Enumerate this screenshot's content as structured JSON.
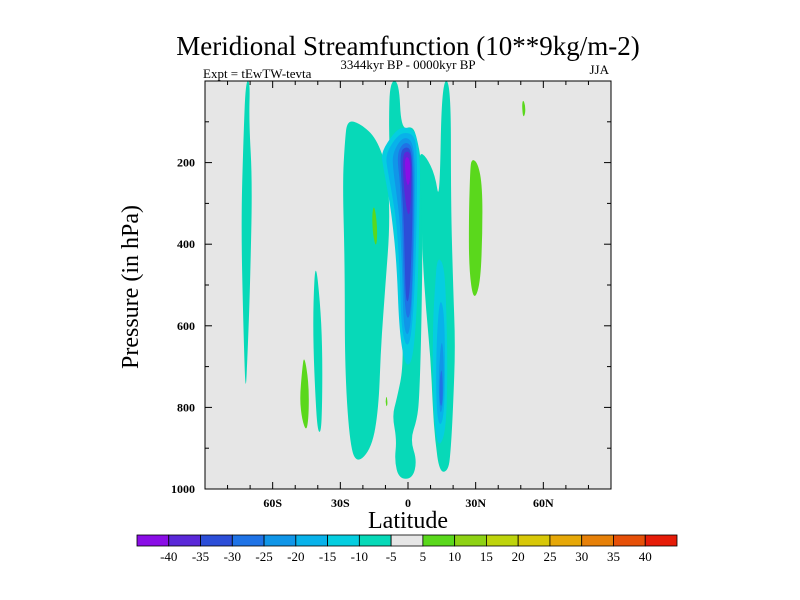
{
  "chart_data": {
    "type": "contour",
    "title": "Meridional Streamfunction (10**9kg/m-2)",
    "left_label": "Expt = tEwTW-tevta",
    "center_label": "3344kyr BP - 0000kyr BP",
    "right_label": "JJA",
    "xlabel": "Latitude",
    "ylabel": "Pressure (in hPa)",
    "xlim": [
      -90,
      90
    ],
    "ylim": [
      1000,
      0
    ],
    "x_ticks": [
      {
        "value": -60,
        "label": "60S"
      },
      {
        "value": -30,
        "label": "30S"
      },
      {
        "value": 0,
        "label": "0"
      },
      {
        "value": 30,
        "label": "30N"
      },
      {
        "value": 60,
        "label": "60N"
      }
    ],
    "y_ticks": [
      {
        "value": 200,
        "label": "200"
      },
      {
        "value": 400,
        "label": "400"
      },
      {
        "value": 600,
        "label": "600"
      },
      {
        "value": 800,
        "label": "800"
      },
      {
        "value": 1000,
        "label": "1000"
      }
    ],
    "levels": [
      -45,
      -40,
      -35,
      -30,
      -25,
      -20,
      -15,
      -10,
      -5,
      5,
      10,
      15,
      20,
      25,
      30,
      35,
      40,
      45
    ],
    "colorbar_labels": [
      "-40",
      "-35",
      "-30",
      "-25",
      "-20",
      "-15",
      "-10",
      "-5",
      "5",
      "10",
      "15",
      "20",
      "25",
      "30",
      "35",
      "40"
    ],
    "colors": [
      "#8a0ee6",
      "#5a28d8",
      "#2c4ed8",
      "#1f73e6",
      "#1096e8",
      "#08b2ea",
      "#05cee0",
      "#07d9b8",
      "#e6e6e6",
      "#5ad81c",
      "#8ed214",
      "#bed40c",
      "#d8c808",
      "#e6a808",
      "#e68008",
      "#e65008",
      "#e61c08"
    ],
    "background_color": "#e6e6e6",
    "regions": [
      {
        "level": "-10 to -5",
        "color_index": 7,
        "points": [
          [
            -72,
            0
          ],
          [
            -70,
            0
          ],
          [
            -70.5,
            100
          ],
          [
            -69,
            250
          ],
          [
            -70,
            500
          ],
          [
            -71,
            650
          ],
          [
            -72,
            780
          ],
          [
            -73,
            600
          ],
          [
            -74,
            350
          ],
          [
            -73,
            150
          ]
        ]
      },
      {
        "level": "-10 to -5",
        "color_index": 7,
        "points": [
          [
            -27,
            95
          ],
          [
            -21,
            105
          ],
          [
            -14,
            140
          ],
          [
            -9,
            220
          ],
          [
            -8,
            350
          ],
          [
            -10,
            500
          ],
          [
            -12,
            650
          ],
          [
            -13,
            800
          ],
          [
            -16,
            900
          ],
          [
            -23,
            940
          ],
          [
            -26,
            880
          ],
          [
            -28,
            700
          ],
          [
            -28,
            450
          ],
          [
            -29,
            250
          ],
          [
            -28,
            150
          ]
        ]
      },
      {
        "level": "-10 to -5",
        "color_index": 7,
        "points": [
          [
            -8,
            0
          ],
          [
            -4,
            0
          ],
          [
            -3,
            120
          ],
          [
            2,
            110
          ],
          [
            4,
            140
          ],
          [
            6,
            200
          ],
          [
            6.5,
            350
          ],
          [
            6,
            600
          ],
          [
            5,
            780
          ],
          [
            4,
            830
          ],
          [
            1,
            880
          ],
          [
            4,
            930
          ],
          [
            2,
            975
          ],
          [
            -4,
            975
          ],
          [
            -6,
            930
          ],
          [
            -5,
            880
          ],
          [
            -7,
            820
          ],
          [
            -5,
            780
          ],
          [
            -2,
            700
          ],
          [
            -3,
            550
          ],
          [
            -5,
            400
          ],
          [
            -7,
            300
          ],
          [
            -8,
            200
          ],
          [
            -8.5,
            100
          ]
        ]
      },
      {
        "level": "-10 to -5",
        "color_index": 7,
        "points": [
          [
            5,
            175
          ],
          [
            8,
            185
          ],
          [
            12,
            230
          ],
          [
            14,
            300
          ],
          [
            15,
            0
          ],
          [
            19,
            0
          ],
          [
            19,
            300
          ],
          [
            20,
            500
          ],
          [
            21,
            650
          ],
          [
            20,
            800
          ],
          [
            19,
            900
          ],
          [
            18,
            955
          ],
          [
            14,
            960
          ],
          [
            12,
            880
          ],
          [
            11,
            800
          ],
          [
            10,
            680
          ],
          [
            8,
            560
          ],
          [
            6.5,
            440
          ],
          [
            6,
            320
          ],
          [
            5.5,
            220
          ]
        ]
      },
      {
        "level": "-10 to -5",
        "color_index": 7,
        "points": [
          [
            -41,
            440
          ],
          [
            -39,
            540
          ],
          [
            -38,
            650
          ],
          [
            -38,
            780
          ],
          [
            -38.5,
            860
          ],
          [
            -40,
            860
          ],
          [
            -41,
            780
          ],
          [
            -42,
            650
          ],
          [
            -42,
            540
          ]
        ]
      },
      {
        "level": "5 to 10",
        "color_index": 9,
        "points": [
          [
            -46,
            670
          ],
          [
            -44,
            740
          ],
          [
            -44,
            820
          ],
          [
            -45,
            860
          ],
          [
            -47,
            830
          ],
          [
            -48,
            780
          ],
          [
            -47,
            710
          ]
        ]
      },
      {
        "level": "5 to 10",
        "color_index": 9,
        "points": [
          [
            -15,
            300
          ],
          [
            -13.5,
            360
          ],
          [
            -14,
            410
          ],
          [
            -15.5,
            380
          ],
          [
            -16,
            330
          ]
        ]
      },
      {
        "level": "5 to 10",
        "color_index": 9,
        "points": [
          [
            -9.5,
            770
          ],
          [
            -9,
            790
          ],
          [
            -9.5,
            800
          ],
          [
            -10,
            785
          ]
        ]
      },
      {
        "level": "5 to 10",
        "color_index": 9,
        "points": [
          [
            28,
            190
          ],
          [
            31,
            200
          ],
          [
            33,
            260
          ],
          [
            33,
            380
          ],
          [
            32,
            500
          ],
          [
            29,
            540
          ],
          [
            27,
            460
          ],
          [
            27,
            320
          ],
          [
            27.5,
            230
          ]
        ]
      },
      {
        "level": "5 to 10",
        "color_index": 9,
        "points": [
          [
            51,
            45
          ],
          [
            52,
            60
          ],
          [
            52,
            80
          ],
          [
            51,
            90
          ],
          [
            50.5,
            60
          ]
        ]
      },
      {
        "level": "-15 to -10",
        "color_index": 6,
        "points": [
          [
            -12,
            175
          ],
          [
            -6,
            125
          ],
          [
            -2,
            112
          ],
          [
            3,
            120
          ],
          [
            4.5,
            160
          ],
          [
            5.5,
            220
          ],
          [
            5,
            320
          ],
          [
            4.5,
            480
          ],
          [
            3.5,
            600
          ],
          [
            2,
            680
          ],
          [
            0,
            700
          ],
          [
            -2,
            680
          ],
          [
            -4,
            600
          ],
          [
            -5,
            450
          ],
          [
            -7,
            340
          ],
          [
            -9,
            270
          ],
          [
            -11,
            210
          ]
        ]
      },
      {
        "level": "-15 to -10",
        "color_index": 6,
        "points": [
          [
            13,
            430
          ],
          [
            16,
            450
          ],
          [
            17,
            550
          ],
          [
            17.5,
            700
          ],
          [
            17,
            850
          ],
          [
            14,
            900
          ],
          [
            12,
            860
          ],
          [
            11,
            760
          ],
          [
            11,
            600
          ],
          [
            12,
            500
          ]
        ]
      },
      {
        "level": "-20 to -15",
        "color_index": 5,
        "points": [
          [
            -10,
            180
          ],
          [
            -5,
            135
          ],
          [
            -1,
            125
          ],
          [
            3,
            135
          ],
          [
            4,
            180
          ],
          [
            4,
            280
          ],
          [
            3.5,
            420
          ],
          [
            2.5,
            560
          ],
          [
            1,
            640
          ],
          [
            -1,
            650
          ],
          [
            -3,
            600
          ],
          [
            -3.5,
            480
          ],
          [
            -5,
            350
          ],
          [
            -7,
            280
          ],
          [
            -9,
            220
          ]
        ]
      },
      {
        "level": "-20 to -15",
        "color_index": 5,
        "points": [
          [
            14,
            530
          ],
          [
            16,
            560
          ],
          [
            16.5,
            700
          ],
          [
            16,
            820
          ],
          [
            14,
            850
          ],
          [
            12.5,
            800
          ],
          [
            12.5,
            650
          ]
        ]
      },
      {
        "level": "-25 to -20",
        "color_index": 4,
        "points": [
          [
            -7,
            180
          ],
          [
            -3,
            140
          ],
          [
            1,
            140
          ],
          [
            3,
            175
          ],
          [
            3,
            300
          ],
          [
            2.5,
            450
          ],
          [
            1.5,
            580
          ],
          [
            0,
            630
          ],
          [
            -2,
            600
          ],
          [
            -2.5,
            480
          ],
          [
            -3.5,
            350
          ],
          [
            -5,
            280
          ],
          [
            -6.5,
            220
          ]
        ]
      },
      {
        "level": "-25 to -20",
        "color_index": 4,
        "points": [
          [
            15,
            620
          ],
          [
            16,
            700
          ],
          [
            15.5,
            800
          ],
          [
            14,
            820
          ],
          [
            13.5,
            720
          ]
        ]
      },
      {
        "level": "-30 to -25",
        "color_index": 3,
        "points": [
          [
            -5,
            180
          ],
          [
            -2,
            150
          ],
          [
            1.5,
            155
          ],
          [
            2.5,
            200
          ],
          [
            2.5,
            340
          ],
          [
            2,
            480
          ],
          [
            1,
            580
          ],
          [
            -1,
            580
          ],
          [
            -2,
            480
          ],
          [
            -2.5,
            350
          ],
          [
            -3.5,
            250
          ]
        ]
      },
      {
        "level": "-30 to -25",
        "color_index": 3,
        "points": [
          [
            15,
            700
          ],
          [
            15.5,
            760
          ],
          [
            15,
            800
          ],
          [
            14,
            790
          ],
          [
            14,
            730
          ]
        ]
      },
      {
        "level": "-35 to -30",
        "color_index": 2,
        "points": [
          [
            -3.5,
            175
          ],
          [
            -1,
            160
          ],
          [
            1.5,
            170
          ],
          [
            2,
            230
          ],
          [
            2,
            330
          ],
          [
            1.5,
            430
          ],
          [
            0.5,
            540
          ],
          [
            -1,
            540
          ],
          [
            -1.5,
            430
          ],
          [
            -2,
            330
          ],
          [
            -3,
            240
          ]
        ]
      },
      {
        "level": "-40 to -35",
        "color_index": 1,
        "points": [
          [
            -2.5,
            180
          ],
          [
            0,
            170
          ],
          [
            1.5,
            185
          ],
          [
            1.5,
            250
          ],
          [
            1,
            320
          ],
          [
            0,
            330
          ],
          [
            -1,
            300
          ],
          [
            -2,
            250
          ]
        ]
      },
      {
        "level": "-45 to -40",
        "color_index": 0,
        "points": [
          [
            -1.5,
            190
          ],
          [
            0,
            185
          ],
          [
            1,
            200
          ],
          [
            1,
            240
          ],
          [
            0,
            260
          ],
          [
            -1,
            240
          ]
        ]
      }
    ]
  }
}
